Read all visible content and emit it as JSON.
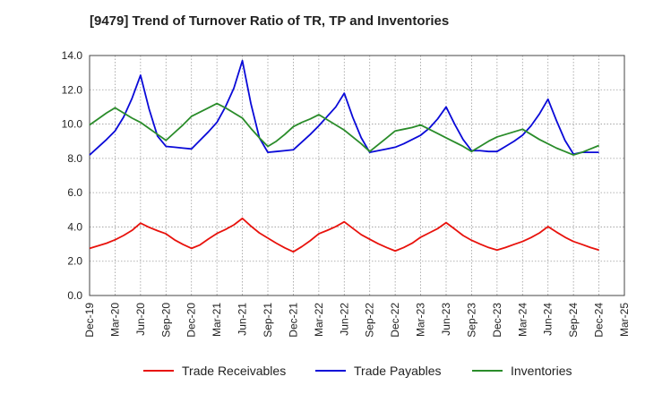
{
  "chart_data": {
    "type": "line",
    "title": "[9479]  Trend of Turnover Ratio of TR, TP and Inventories",
    "xlabel": "",
    "ylabel": "",
    "ylim": [
      0,
      14
    ],
    "yticks": [
      "0.0",
      "2.0",
      "4.0",
      "6.0",
      "8.0",
      "10.0",
      "12.0",
      "14.0"
    ],
    "x_tick_labels": [
      "Dec-19",
      "Mar-20",
      "Jun-20",
      "Sep-20",
      "Dec-20",
      "Mar-21",
      "Jun-21",
      "Sep-21",
      "Dec-21",
      "Mar-22",
      "Jun-22",
      "Sep-22",
      "Dec-22",
      "Mar-23",
      "Jun-23",
      "Sep-23",
      "Dec-23",
      "Mar-24",
      "Jun-24",
      "Sep-24",
      "Dec-24",
      "Mar-25"
    ],
    "grid": true,
    "legend_position": "bottom",
    "x": [
      "Dec-19",
      "Jan-20",
      "Feb-20",
      "Mar-20",
      "Apr-20",
      "May-20",
      "Jun-20",
      "Jul-20",
      "Aug-20",
      "Sep-20",
      "Oct-20",
      "Nov-20",
      "Dec-20",
      "Jan-21",
      "Feb-21",
      "Mar-21",
      "Apr-21",
      "May-21",
      "Jun-21",
      "Jul-21",
      "Aug-21",
      "Sep-21",
      "Oct-21",
      "Nov-21",
      "Dec-21",
      "Jan-22",
      "Feb-22",
      "Mar-22",
      "Apr-22",
      "May-22",
      "Jun-22",
      "Jul-22",
      "Aug-22",
      "Sep-22",
      "Oct-22",
      "Nov-22",
      "Dec-22",
      "Jan-23",
      "Feb-23",
      "Mar-23",
      "Apr-23",
      "May-23",
      "Jun-23",
      "Jul-23",
      "Aug-23",
      "Sep-23",
      "Oct-23",
      "Nov-23",
      "Dec-23",
      "Jan-24",
      "Feb-24",
      "Mar-24",
      "Apr-24",
      "May-24",
      "Jun-24",
      "Jul-24",
      "Aug-24",
      "Sep-24",
      "Oct-24",
      "Nov-24",
      "Dec-24"
    ],
    "series": [
      {
        "name": "Trade Receivables",
        "color": "#e8120c",
        "values": [
          2.75,
          2.9,
          3.05,
          3.25,
          3.5,
          3.8,
          4.22,
          3.98,
          3.78,
          3.6,
          3.25,
          2.98,
          2.75,
          2.95,
          3.3,
          3.62,
          3.85,
          4.12,
          4.5,
          4.05,
          3.65,
          3.35,
          3.05,
          2.78,
          2.55,
          2.85,
          3.2,
          3.6,
          3.8,
          4.02,
          4.3,
          3.92,
          3.55,
          3.28,
          3.02,
          2.8,
          2.6,
          2.8,
          3.05,
          3.4,
          3.65,
          3.9,
          4.25,
          3.88,
          3.5,
          3.22,
          3.0,
          2.8,
          2.65,
          2.8,
          2.98,
          3.15,
          3.38,
          3.65,
          4.02,
          3.7,
          3.4,
          3.15,
          2.98,
          2.8,
          2.65
        ]
      },
      {
        "name": "Trade Payables",
        "color": "#0a0ad8",
        "values": [
          8.2,
          8.65,
          9.1,
          9.6,
          10.4,
          11.5,
          12.85,
          10.9,
          9.3,
          8.7,
          8.65,
          8.6,
          8.55,
          9.05,
          9.55,
          10.1,
          11.0,
          12.1,
          13.7,
          11.2,
          9.2,
          8.35,
          8.4,
          8.45,
          8.5,
          8.95,
          9.4,
          9.9,
          10.45,
          11.0,
          11.8,
          10.4,
          9.2,
          8.35,
          8.45,
          8.55,
          8.65,
          8.85,
          9.1,
          9.35,
          9.75,
          10.3,
          11.0,
          10.0,
          9.1,
          8.45,
          8.45,
          8.4,
          8.4,
          8.7,
          9.0,
          9.35,
          9.9,
          10.6,
          11.45,
          10.2,
          9.05,
          8.25,
          8.35,
          8.35,
          8.35
        ]
      },
      {
        "name": "Inventories",
        "color": "#2a8c2a",
        "values": [
          9.95,
          10.3,
          10.65,
          10.95,
          10.65,
          10.35,
          10.1,
          9.75,
          9.4,
          9.05,
          9.5,
          9.95,
          10.45,
          10.7,
          10.95,
          11.2,
          10.95,
          10.65,
          10.35,
          9.75,
          9.2,
          8.7,
          9.0,
          9.4,
          9.85,
          10.1,
          10.3,
          10.55,
          10.25,
          9.95,
          9.65,
          9.25,
          8.85,
          8.4,
          8.8,
          9.2,
          9.6,
          9.7,
          9.8,
          9.95,
          9.7,
          9.45,
          9.2,
          8.95,
          8.7,
          8.4,
          8.7,
          9.0,
          9.25,
          9.4,
          9.55,
          9.7,
          9.4,
          9.1,
          8.85,
          8.6,
          8.4,
          8.2,
          8.35,
          8.55,
          8.75
        ]
      }
    ]
  }
}
